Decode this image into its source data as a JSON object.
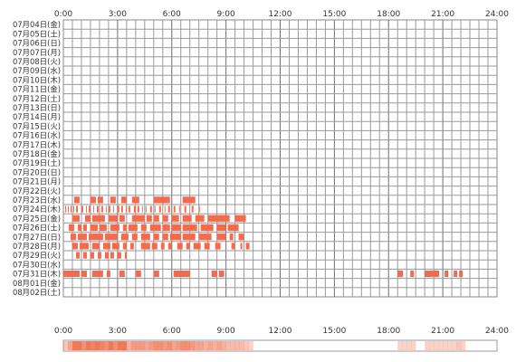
{
  "chart_data": {
    "type": "heatmap",
    "x_ticks": [
      "0:00",
      "3:00",
      "6:00",
      "9:00",
      "12:00",
      "15:00",
      "18:00",
      "21:00",
      "24:00"
    ],
    "xlim": [
      0,
      24
    ],
    "days": [
      "07月04日(金)",
      "07月05日(土)",
      "07月06日(日)",
      "07月07日(月)",
      "07月08日(火)",
      "07月09日(水)",
      "07月10日(木)",
      "07月11日(金)",
      "07月12日(土)",
      "07月13日(日)",
      "07月14日(月)",
      "07月15日(火)",
      "07月16日(水)",
      "07月17日(木)",
      "07月18日(金)",
      "07月19日(土)",
      "07月20日(日)",
      "07月21日(月)",
      "07月22日(火)",
      "07月23日(水)",
      "07月24日(木)",
      "07月25日(金)",
      "07月26日(土)",
      "07月27日(日)",
      "07月28日(月)",
      "07月29日(火)",
      "07月30日(水)",
      "07月31日(木)",
      "08月01日(金)",
      "08月02日(土)"
    ],
    "activity": [
      [],
      [],
      [],
      [],
      [],
      [],
      [],
      [],
      [],
      [],
      [],
      [],
      [],
      [],
      [],
      [],
      [],
      [],
      [],
      [
        [
          0.6,
          0.9
        ],
        [
          1.5,
          1.8
        ],
        [
          1.9,
          2.2
        ],
        [
          2.6,
          2.9
        ],
        [
          3.2,
          3.5
        ],
        [
          3.8,
          4.2
        ],
        [
          5.0,
          5.9
        ],
        [
          6.6,
          7.3
        ]
      ],
      [
        [
          0.1,
          0.15
        ],
        [
          0.25,
          0.3
        ],
        [
          0.4,
          0.45
        ],
        [
          0.55,
          0.6
        ],
        [
          0.7,
          0.8
        ],
        [
          1.0,
          1.1
        ],
        [
          1.25,
          1.3
        ],
        [
          1.4,
          1.5
        ],
        [
          1.65,
          1.7
        ],
        [
          1.85,
          1.95
        ],
        [
          2.1,
          2.2
        ],
        [
          2.35,
          2.4
        ],
        [
          2.5,
          2.6
        ],
        [
          2.75,
          2.8
        ],
        [
          3.0,
          3.1
        ],
        [
          3.2,
          3.3
        ],
        [
          3.45,
          3.5
        ],
        [
          3.6,
          3.7
        ],
        [
          3.9,
          4.0
        ],
        [
          4.1,
          4.2
        ],
        [
          4.35,
          4.4
        ],
        [
          4.55,
          4.6
        ],
        [
          4.8,
          4.9
        ],
        [
          5.05,
          5.1
        ],
        [
          5.3,
          5.4
        ],
        [
          5.6,
          5.65
        ],
        [
          5.8,
          5.9
        ],
        [
          6.1,
          6.2
        ],
        [
          6.4,
          6.45
        ],
        [
          6.7,
          6.8
        ],
        [
          7.1,
          7.2
        ],
        [
          7.5,
          7.55
        ]
      ],
      [
        [
          0.5,
          0.9
        ],
        [
          1.2,
          1.5
        ],
        [
          1.6,
          2.3
        ],
        [
          2.5,
          3.0
        ],
        [
          3.1,
          3.4
        ],
        [
          3.8,
          4.5
        ],
        [
          4.6,
          4.9
        ],
        [
          5.0,
          5.3
        ],
        [
          5.5,
          5.8
        ],
        [
          6.0,
          6.4
        ],
        [
          6.6,
          7.1
        ],
        [
          7.3,
          7.8
        ],
        [
          8.0,
          9.2
        ],
        [
          9.5,
          10.1
        ]
      ],
      [
        [
          0.3,
          0.6
        ],
        [
          0.8,
          1.0
        ],
        [
          1.1,
          1.3
        ],
        [
          1.5,
          1.9
        ],
        [
          2.0,
          2.4
        ],
        [
          2.6,
          3.1
        ],
        [
          3.3,
          3.5
        ],
        [
          3.6,
          4.1
        ],
        [
          4.3,
          4.6
        ],
        [
          4.8,
          5.4
        ],
        [
          5.5,
          5.9
        ],
        [
          6.0,
          6.5
        ],
        [
          6.6,
          7.4
        ],
        [
          7.6,
          8.3
        ],
        [
          8.5,
          9.0
        ],
        [
          9.1,
          9.7
        ]
      ],
      [
        [
          0.4,
          0.7
        ],
        [
          0.8,
          1.3
        ],
        [
          1.4,
          2.2
        ],
        [
          2.3,
          3.0
        ],
        [
          3.2,
          3.6
        ],
        [
          3.8,
          4.1
        ],
        [
          4.3,
          4.8
        ],
        [
          5.0,
          5.3
        ],
        [
          5.5,
          5.8
        ],
        [
          5.9,
          6.5
        ],
        [
          6.6,
          7.3
        ],
        [
          7.5,
          8.2
        ],
        [
          8.5,
          9.0
        ],
        [
          9.2,
          9.4
        ],
        [
          9.7,
          10.0
        ]
      ],
      [
        [
          0.5,
          0.8
        ],
        [
          0.9,
          1.4
        ],
        [
          1.6,
          2.0
        ],
        [
          2.2,
          2.6
        ],
        [
          2.7,
          3.1
        ],
        [
          3.3,
          3.5
        ],
        [
          3.7,
          3.9
        ],
        [
          4.3,
          4.8
        ],
        [
          4.9,
          5.2
        ],
        [
          5.4,
          5.6
        ],
        [
          5.8,
          6.0
        ],
        [
          6.3,
          6.6
        ],
        [
          6.8,
          7.0
        ],
        [
          7.2,
          7.6
        ],
        [
          7.8,
          8.1
        ],
        [
          8.4,
          8.7
        ],
        [
          9.3,
          9.5
        ],
        [
          9.8,
          9.9
        ],
        [
          10.1,
          10.3
        ]
      ],
      [
        [
          0.7,
          0.9
        ],
        [
          1.1,
          1.3
        ],
        [
          1.5,
          1.7
        ],
        [
          1.9,
          2.1
        ],
        [
          2.3,
          2.5
        ],
        [
          2.6,
          2.8
        ],
        [
          3.0,
          3.2
        ],
        [
          3.4,
          3.5
        ]
      ],
      [],
      [
        [
          0.0,
          0.9
        ],
        [
          1.0,
          1.3
        ],
        [
          1.6,
          2.2
        ],
        [
          2.4,
          2.6
        ],
        [
          3.1,
          3.4
        ],
        [
          4.0,
          4.3
        ],
        [
          5.0,
          5.3
        ],
        [
          6.1,
          7.0
        ],
        [
          8.2,
          8.5
        ],
        [
          8.6,
          8.9
        ],
        [
          18.5,
          18.8
        ],
        [
          19.2,
          19.4
        ],
        [
          20.0,
          20.8
        ],
        [
          21.1,
          21.3
        ],
        [
          21.6,
          21.8
        ],
        [
          21.9,
          22.1
        ]
      ],
      [],
      []
    ],
    "summary_row": true,
    "colors": {
      "bar": "#f26b4e",
      "summary_dark": "#f07858",
      "summary_light": "#fbdcd2",
      "grid": "#888888",
      "axis_text": "#333333"
    }
  }
}
